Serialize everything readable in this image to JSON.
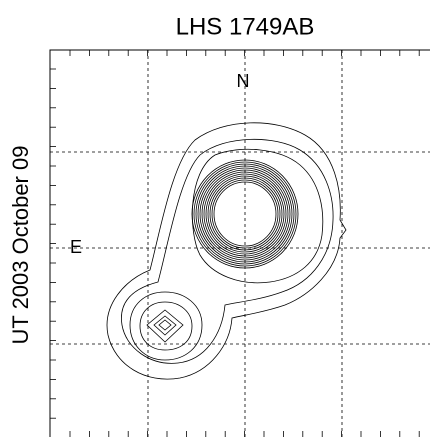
{
  "chart_data": {
    "type": "contour",
    "title": "LHS 1749AB",
    "ylabel": "UT 2003 October 09",
    "annotations": [
      "N",
      "E"
    ],
    "grid": true
  }
}
